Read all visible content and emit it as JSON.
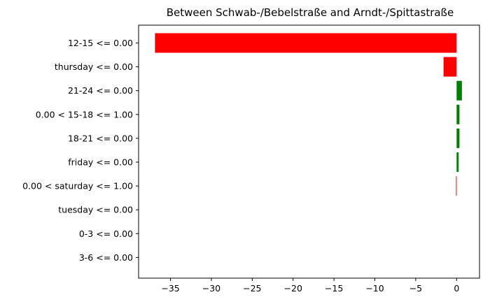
{
  "chart_data": {
    "type": "bar",
    "orientation": "horizontal",
    "title": "Between Schwab-/Bebelstraße and Arndt-/Spittastraße",
    "xlabel": "",
    "ylabel": "",
    "xlim": [
      -38.9,
      2.8
    ],
    "x_ticks": [
      -35,
      -30,
      -25,
      -20,
      -15,
      -10,
      -5,
      0
    ],
    "x_tick_labels": [
      "−35",
      "−30",
      "−25",
      "−20",
      "−15",
      "−10",
      "−5",
      "0"
    ],
    "grid": false,
    "legend": "none",
    "categories": [
      "12-15 <= 0.00",
      "thursday <= 0.00",
      "21-24 <= 0.00",
      "0.00 < 15-18 <= 1.00",
      "18-21 <= 0.00",
      "friday <= 0.00",
      "0.00 < saturday <= 1.00",
      "tuesday <= 0.00",
      "0-3 <= 0.00",
      "3-6 <= 0.00"
    ],
    "values": [
      -36.9,
      -1.6,
      0.65,
      0.35,
      0.35,
      0.25,
      -0.08,
      0.0,
      0.0,
      0.0
    ],
    "colors": {
      "negative": "#ff0000",
      "positive": "#008000",
      "axis": "#000000"
    }
  }
}
